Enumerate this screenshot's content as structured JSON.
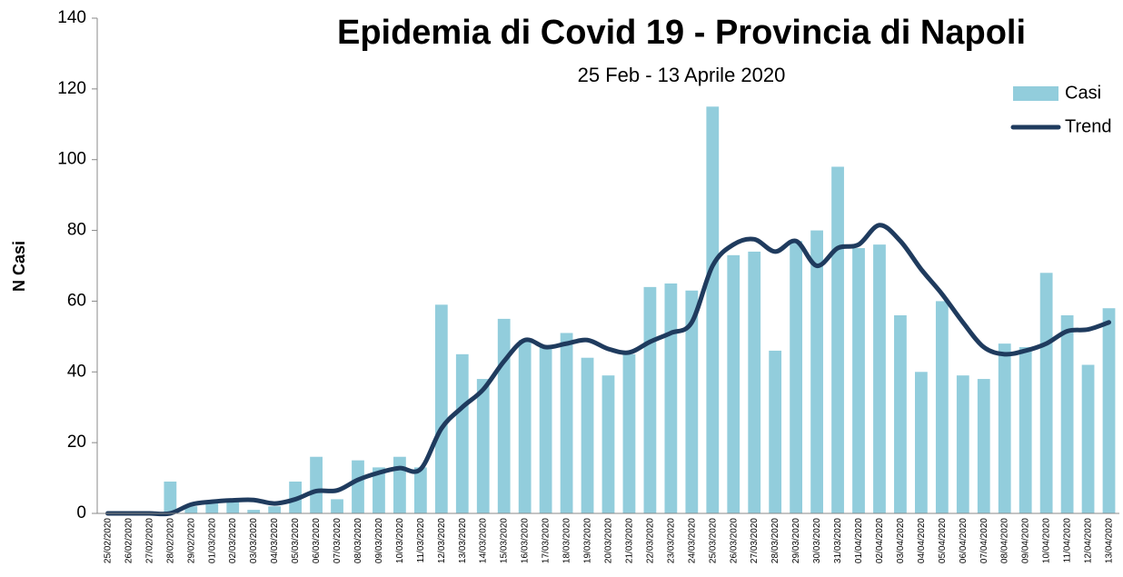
{
  "chart_data": {
    "type": "bar",
    "title": "Epidemia di Covid 19 - Provincia di Napoli",
    "subtitle": "25 Feb - 13 Aprile 2020",
    "y_label": "N Casi",
    "categories": [
      "25/02/2020",
      "26/02/2020",
      "27/02/2020",
      "28/02/2020",
      "29/02/2020",
      "01/03/2020",
      "02/03/2020",
      "03/03/2020",
      "04/03/2020",
      "05/03/2020",
      "06/03/2020",
      "07/03/2020",
      "08/03/2020",
      "09/03/2020",
      "10/03/2020",
      "11/03/2020",
      "12/03/2020",
      "13/03/2020",
      "14/03/2020",
      "15/03/2020",
      "16/03/2020",
      "17/03/2020",
      "18/03/2020",
      "19/03/2020",
      "20/03/2020",
      "21/03/2020",
      "22/03/2020",
      "23/03/2020",
      "24/03/2020",
      "25/03/2020",
      "26/03/2020",
      "27/03/2020",
      "28/03/2020",
      "29/03/2020",
      "30/03/2020",
      "31/03/2020",
      "01/04/2020",
      "02/04/2020",
      "03/04/2020",
      "04/04/2020",
      "05/04/2020",
      "06/04/2020",
      "07/04/2020",
      "08/04/2020",
      "09/04/2020",
      "10/04/2020",
      "11/04/2020",
      "12/04/2020",
      "13/04/2020"
    ],
    "series": [
      {
        "name": "Casi",
        "type": "bar",
        "color": "#92cddc",
        "values": [
          0,
          0,
          0,
          9,
          2,
          3,
          4,
          1,
          2,
          9,
          16,
          4,
          15,
          13,
          16,
          13,
          59,
          45,
          38,
          55,
          49,
          47,
          51,
          44,
          39,
          45,
          64,
          65,
          63,
          115,
          73,
          74,
          46,
          77,
          80,
          98,
          75,
          76,
          56,
          40,
          60,
          39,
          38,
          48,
          47,
          68,
          56,
          42,
          58
        ]
      },
      {
        "name": "Trend",
        "type": "line",
        "color": "#1f3b5e",
        "values": [
          0,
          0,
          0,
          0,
          2.5,
          3.3,
          3.7,
          3.8,
          2.8,
          4,
          6.3,
          6.5,
          9.5,
          11.5,
          12.8,
          12.5,
          24,
          30,
          35,
          43,
          49,
          47,
          48,
          49,
          46.5,
          45.5,
          48.5,
          51,
          54,
          70,
          76,
          77.5,
          74,
          77,
          70,
          75,
          76,
          81.5,
          77,
          69,
          62,
          54,
          47,
          45,
          46,
          48,
          51.5,
          52,
          54
        ]
      }
    ],
    "ylim": [
      0,
      140
    ],
    "yticks": [
      0,
      20,
      40,
      60,
      80,
      100,
      120,
      140
    ],
    "grid": false,
    "legend": "top-right"
  }
}
